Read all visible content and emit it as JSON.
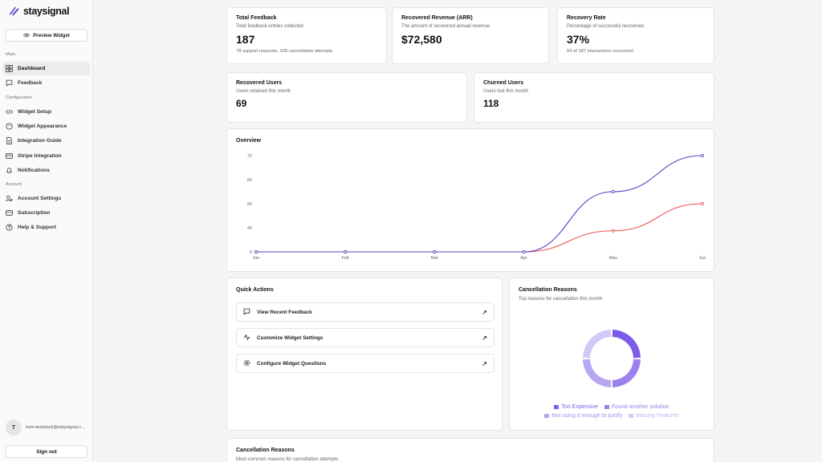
{
  "brand": {
    "name": "staysignal"
  },
  "sidebar": {
    "preview_label": "Preview Widget",
    "sections": {
      "main": "Main",
      "configuration": "Configuration",
      "account": "Account"
    },
    "items": [
      {
        "label": "Dashboard",
        "icon": "dashboard-icon"
      },
      {
        "label": "Feedback",
        "icon": "message-icon"
      },
      {
        "label": "Widget Setup",
        "icon": "code-icon"
      },
      {
        "label": "Widget Appearance",
        "icon": "palette-icon"
      },
      {
        "label": "Integration Guide",
        "icon": "document-icon"
      },
      {
        "label": "Stripe Integration",
        "icon": "card-icon"
      },
      {
        "label": "Notifications",
        "icon": "bell-icon"
      },
      {
        "label": "Account Settings",
        "icon": "user-settings-icon"
      },
      {
        "label": "Subscription",
        "icon": "subscription-icon"
      },
      {
        "label": "Help & Support",
        "icon": "help-icon"
      }
    ],
    "user": {
      "initial": "T",
      "email": "tom+testslack@staysignal.com"
    },
    "signout_label": "Sign out"
  },
  "stats": {
    "total_feedback": {
      "title": "Total Feedback",
      "subtitle": "Total feedback entries collected",
      "value": "187",
      "note": "78 support requests, 109 cancellation attempts"
    },
    "recovered_revenue": {
      "title": "Recovered Revenue (ARR)",
      "subtitle": "The amount of recovered annual revenue",
      "value": "$72,580"
    },
    "recovery_rate": {
      "title": "Recovery Rate",
      "subtitle": "Percentage of successful recoveries",
      "value": "37%",
      "note": "69 of 187 interactions recovered"
    },
    "recovered_users": {
      "title": "Recovered Users",
      "subtitle": "Users retained this month",
      "value": "69"
    },
    "churned_users": {
      "title": "Churned Users",
      "subtitle": "Users lost this month",
      "value": "118"
    }
  },
  "overview": {
    "title": "Overview"
  },
  "quick_actions": {
    "title": "Quick Actions",
    "items": [
      {
        "label": "View Recent Feedback",
        "icon": "message-icon"
      },
      {
        "label": "Customize Widget Settings",
        "icon": "activity-icon"
      },
      {
        "label": "Configure Widget Questions",
        "icon": "gear-icon"
      }
    ]
  },
  "cancellation_reasons": {
    "title": "Cancellation Reasons",
    "subtitle": "Top reasons for cancellation this month",
    "legend": [
      "Too Expensive",
      "Found another solution",
      "Not using it enough to justify",
      "Missing Features"
    ],
    "colors": [
      "#7c5ce6",
      "#9b82ec",
      "#b7a6f1",
      "#d3c9f7"
    ]
  },
  "bottom_card": {
    "title": "Cancellation Reasons",
    "subtitle": "Most common reasons for cancellation attempts"
  },
  "chart_data": {
    "type": "line",
    "title": "Overview",
    "categories": [
      "Jan",
      "Feb",
      "Mar",
      "Apr",
      "May",
      "Jun"
    ],
    "series": [
      {
        "values": [
          0,
          0,
          0,
          0,
          55,
          70
        ],
        "color": "#5b3fc4"
      },
      {
        "values": [
          0,
          0,
          0,
          0,
          35,
          50
        ],
        "color": "#ef5350"
      }
    ],
    "y_ticks": [
      0,
      40,
      50,
      60,
      70
    ],
    "grid": false
  },
  "donut_data": {
    "type": "pie",
    "slices": [
      {
        "label": "Too Expensive",
        "value": 25
      },
      {
        "label": "Found another solution",
        "value": 25
      },
      {
        "label": "Not using it enough to justify",
        "value": 25
      },
      {
        "label": "Missing Features",
        "value": 25
      }
    ]
  }
}
